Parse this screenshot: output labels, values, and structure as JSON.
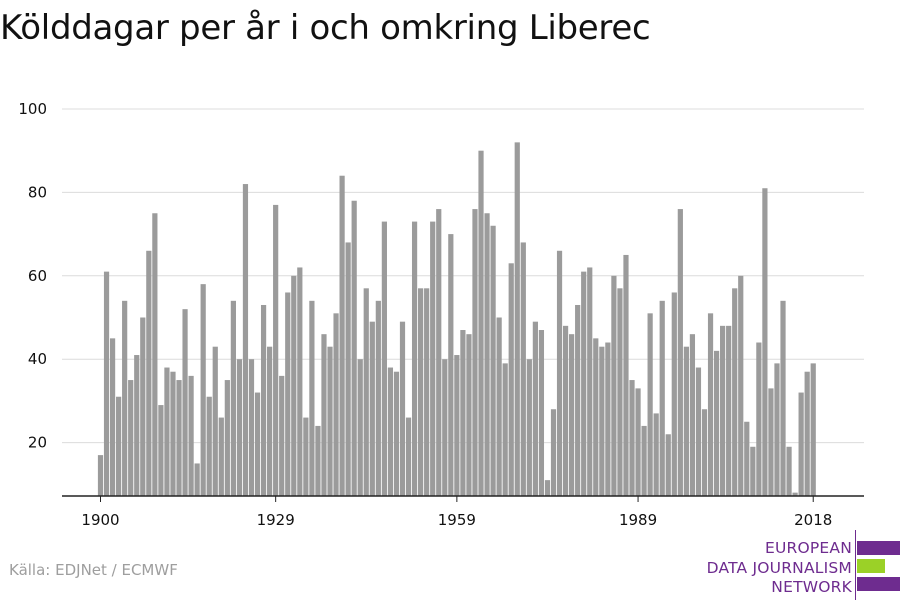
{
  "chart_data": {
    "type": "bar",
    "title": "Kölddagar per år i och omkring Liberec",
    "xlabel": "",
    "ylabel": "",
    "x_start": 1900,
    "x_end": 2018,
    "x_ticks": [
      1900,
      1929,
      1959,
      1989,
      2018
    ],
    "y_ticks": [
      20,
      40,
      60,
      80,
      100
    ],
    "ylim": [
      7,
      100
    ],
    "grid": true,
    "bar_color": "#9b9b9b",
    "values": [
      17,
      61,
      45,
      31,
      54,
      35,
      41,
      50,
      66,
      75,
      29,
      38,
      37,
      35,
      52,
      36,
      15,
      58,
      31,
      43,
      26,
      35,
      54,
      40,
      82,
      40,
      32,
      53,
      43,
      77,
      36,
      56,
      60,
      62,
      26,
      54,
      24,
      46,
      43,
      51,
      84,
      68,
      78,
      40,
      57,
      49,
      54,
      73,
      38,
      37,
      49,
      26,
      73,
      57,
      57,
      73,
      76,
      40,
      70,
      41,
      47,
      46,
      76,
      90,
      75,
      72,
      50,
      39,
      63,
      92,
      68,
      40,
      49,
      47,
      11,
      28,
      66,
      48,
      46,
      53,
      61,
      62,
      45,
      43,
      44,
      60,
      57,
      65,
      35,
      33,
      24,
      51,
      27,
      54,
      22,
      56,
      76,
      43,
      46,
      38,
      28,
      51,
      42,
      48,
      48,
      57,
      60,
      25,
      19,
      44,
      81,
      33,
      39,
      54,
      19,
      8,
      32,
      37,
      39
    ]
  },
  "source": "Källa: EDJNet / ECMWF",
  "logo": {
    "line1": "EUROPEAN",
    "line2": "DATA JOURNALISM",
    "line3": "NETWORK",
    "purple": "#6e2c8f",
    "green": "#9bd127"
  }
}
